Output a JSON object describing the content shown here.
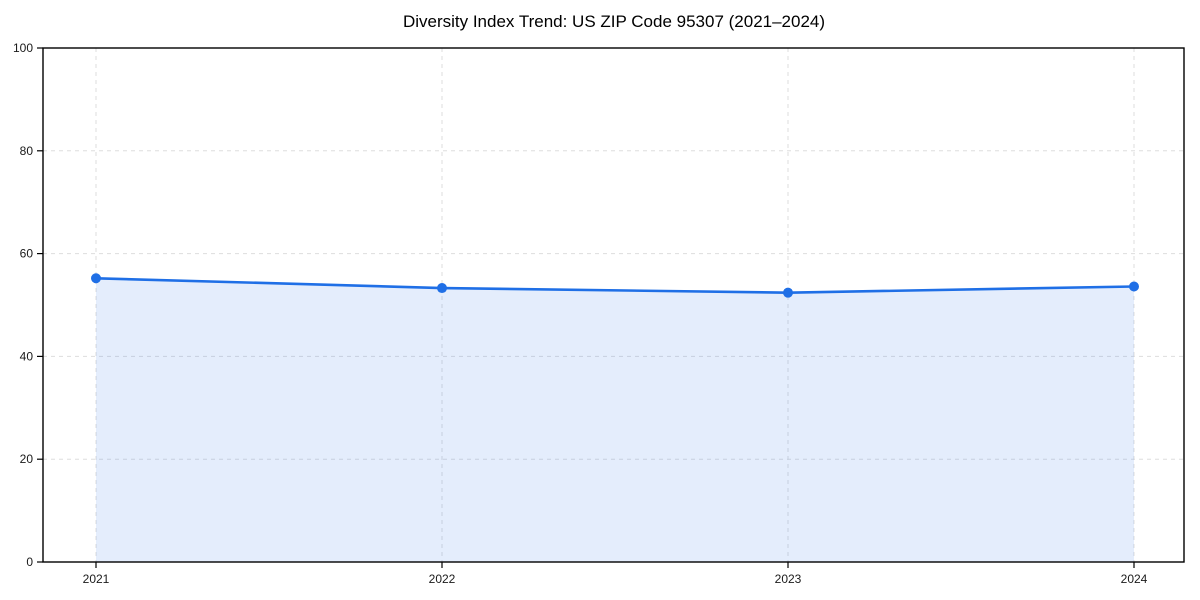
{
  "chart_data": {
    "type": "line",
    "title": "Diversity Index Trend: US ZIP Code 95307 (2021–2024)",
    "xlabel": "",
    "ylabel": "",
    "categories": [
      "2021",
      "2022",
      "2023",
      "2024"
    ],
    "series": [
      {
        "name": "Diversity Index",
        "values": [
          55.2,
          53.3,
          52.4,
          53.6
        ]
      }
    ],
    "ylim": [
      0,
      100
    ],
    "yticks": [
      0,
      20,
      40,
      60,
      80,
      100
    ],
    "grid": {
      "visible": true,
      "style": "dashed",
      "axes": "both"
    },
    "legend_position": "none",
    "area_fill": true,
    "markers": true,
    "colors": {
      "line": "#1f6fe6",
      "marker": "#1f6fe6",
      "area_fill": "#1f6fe6",
      "area_fill_rendered": "#e7effc",
      "grid": "#dddddd",
      "spine": "#000000",
      "tick_label": "#1a1a1a",
      "title": "#000000",
      "background": "#ffffff"
    }
  }
}
